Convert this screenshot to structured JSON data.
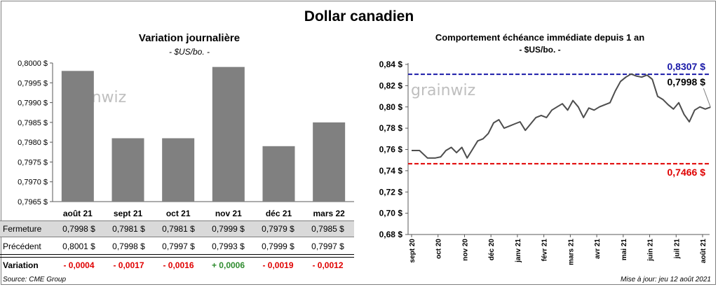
{
  "title": "Dollar canadien",
  "colors": {
    "bar": "#808080",
    "line": "#4d4d4d",
    "high": "#1a1aa8",
    "low": "#e00000",
    "positive": "#2e8b2e",
    "negative": "#e00000"
  },
  "watermark": "grainwiz",
  "chart_data": [
    {
      "type": "bar",
      "title": "Variation  journalière",
      "subtitle": "- $US/bo. -",
      "categories": [
        "août 21",
        "sept 21",
        "oct 21",
        "nov 21",
        "déc 21",
        "mars 22"
      ],
      "values": [
        0.7998,
        0.7981,
        0.7981,
        0.7999,
        0.7979,
        0.7985
      ],
      "ylim": [
        0.7965,
        0.8
      ],
      "yticks": [
        "0,7965 $",
        "0,7970 $",
        "0,7975 $",
        "0,7980 $",
        "0,7985 $",
        "0,7990 $",
        "0,7995 $",
        "0,8000 $"
      ],
      "grid": false
    },
    {
      "type": "line",
      "title": "Comportement échéance immédiate depuis 1 an",
      "subtitle": "- $US/bo. -",
      "ylim": [
        0.68,
        0.84
      ],
      "yticks": [
        "0,68 $",
        "0,70 $",
        "0,72 $",
        "0,74 $",
        "0,76 $",
        "0,78 $",
        "0,80 $",
        "0,82 $",
        "0,84 $"
      ],
      "xticks": [
        "sept 20",
        "oct 20",
        "nov 20",
        "déc 20",
        "janv 21",
        "févr 21",
        "mars 21",
        "avr 21",
        "mai 21",
        "juin 21",
        "juil 21",
        "août 21"
      ],
      "high": {
        "value": 0.8307,
        "label": "0,8307 $"
      },
      "low": {
        "value": 0.7466,
        "label": "0,7466 $"
      },
      "last": {
        "value": 0.7998,
        "label": "0,7998 $"
      },
      "x": [
        0,
        0.3,
        0.6,
        0.9,
        1.1,
        1.3,
        1.5,
        1.7,
        1.9,
        2.1,
        2.3,
        2.5,
        2.7,
        2.9,
        3.1,
        3.3,
        3.5,
        3.7,
        3.9,
        4.1,
        4.3,
        4.5,
        4.7,
        4.9,
        5.1,
        5.3,
        5.5,
        5.7,
        5.9,
        6.1,
        6.3,
        6.5,
        6.7,
        6.9,
        7.1,
        7.3,
        7.5,
        7.7,
        7.9,
        8.1,
        8.3,
        8.5,
        8.7,
        8.9,
        9.1,
        9.3,
        9.5,
        9.7,
        9.9,
        10.1,
        10.3,
        10.5,
        10.7,
        10.9,
        11.1,
        11.3
      ],
      "y": [
        0.759,
        0.759,
        0.752,
        0.752,
        0.753,
        0.759,
        0.762,
        0.757,
        0.762,
        0.752,
        0.76,
        0.768,
        0.77,
        0.775,
        0.785,
        0.788,
        0.78,
        0.782,
        0.784,
        0.786,
        0.778,
        0.784,
        0.79,
        0.792,
        0.79,
        0.797,
        0.8,
        0.803,
        0.797,
        0.806,
        0.8,
        0.79,
        0.799,
        0.797,
        0.8,
        0.802,
        0.804,
        0.815,
        0.824,
        0.828,
        0.831,
        0.829,
        0.828,
        0.83,
        0.826,
        0.81,
        0.807,
        0.802,
        0.798,
        0.804,
        0.793,
        0.786,
        0.797,
        0.8,
        0.798,
        0.7998
      ]
    }
  ],
  "table": {
    "rows": [
      {
        "label": "Fermeture",
        "cells": [
          "0,7998  $",
          "0,7981  $",
          "0,7981  $",
          "0,7999  $",
          "0,7979  $",
          "0,7985  $"
        ]
      },
      {
        "label": "Précédent",
        "cells": [
          "0,8001  $",
          "0,7998  $",
          "0,7997  $",
          "0,7993  $",
          "0,7999  $",
          "0,7997  $"
        ]
      },
      {
        "label": "Variation",
        "cells": [
          "- 0,0004",
          "- 0,0017",
          "- 0,0016",
          "+ 0,0006",
          "- 0,0019",
          "- 0,0012"
        ]
      }
    ]
  },
  "footer": {
    "source": "Source: CME Group",
    "updated": "Mise à jour: jeu 12 août 2021"
  }
}
